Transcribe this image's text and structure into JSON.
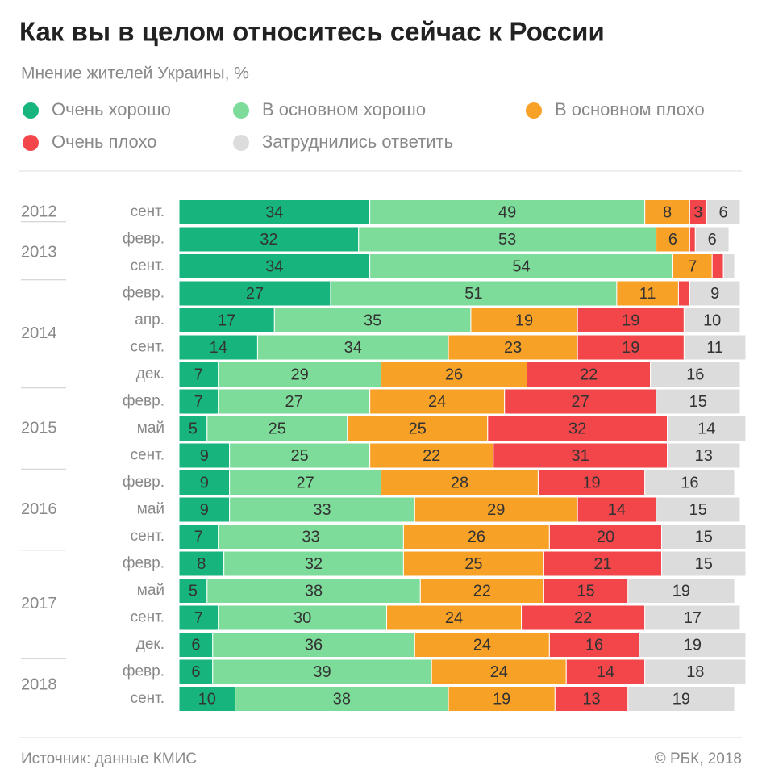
{
  "chart_data": {
    "type": "stacked-bar-horizontal",
    "title": "Как вы в целом относитесь сейчас к России",
    "subtitle": "Мнение жителей Украины, %",
    "source": "Источник: данные КМИС",
    "copyright": "© РБК, 2018",
    "xlim": [
      0,
      100
    ],
    "year_groups": [
      {
        "year": "2012",
        "categories": [
          "сент."
        ]
      },
      {
        "year": "2013",
        "categories": [
          "февр.",
          "сент."
        ]
      },
      {
        "year": "2014",
        "categories": [
          "февр.",
          "апр.",
          "сент.",
          "дек."
        ]
      },
      {
        "year": "2015",
        "categories": [
          "февр.",
          "май",
          "сент."
        ]
      },
      {
        "year": "2016",
        "categories": [
          "февр.",
          "май",
          "сент."
        ]
      },
      {
        "year": "2017",
        "categories": [
          "февр.",
          "май",
          "сент.",
          "дек."
        ]
      },
      {
        "year": "2018",
        "categories": [
          "февр.",
          "сент."
        ]
      }
    ],
    "series": [
      {
        "name": "Очень хорошо",
        "color": "#17b57d",
        "values": [
          34,
          32,
          34,
          27,
          17,
          14,
          7,
          7,
          5,
          9,
          9,
          9,
          7,
          8,
          5,
          7,
          6,
          6,
          10
        ]
      },
      {
        "name": "В основном хорошо",
        "color": "#7ddc9a",
        "values": [
          49,
          53,
          54,
          51,
          35,
          34,
          29,
          27,
          25,
          25,
          27,
          33,
          33,
          32,
          38,
          30,
          36,
          39,
          38
        ]
      },
      {
        "name": "В основном плохо",
        "color": "#f7a126",
        "values": [
          8,
          6,
          7,
          11,
          19,
          23,
          26,
          24,
          25,
          22,
          28,
          29,
          26,
          25,
          22,
          24,
          24,
          24,
          19
        ]
      },
      {
        "name": "Очень плохо",
        "color": "#f2464a",
        "values": [
          3,
          1,
          2,
          2,
          19,
          19,
          22,
          27,
          32,
          31,
          19,
          14,
          20,
          21,
          15,
          22,
          16,
          14,
          13
        ]
      },
      {
        "name": "Затруднились ответить",
        "color": "#dcdcdc",
        "values": [
          6,
          6,
          2,
          9,
          10,
          11,
          16,
          15,
          14,
          13,
          16,
          15,
          15,
          15,
          19,
          17,
          19,
          18,
          19
        ]
      }
    ]
  }
}
